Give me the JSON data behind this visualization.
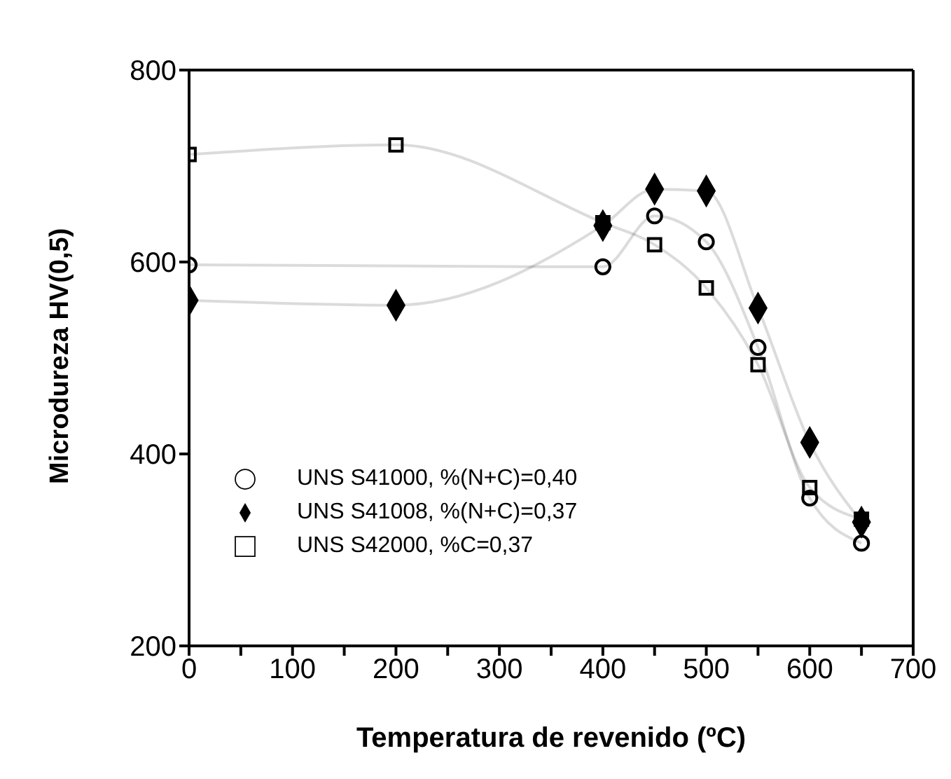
{
  "chart_data": {
    "type": "line",
    "xlabel": "Temperatura de revenido (ºC)",
    "ylabel": "Microdureza HV(0,5)",
    "x": [
      0,
      200,
      400,
      450,
      500,
      550,
      600,
      650
    ],
    "xlim": [
      0,
      700
    ],
    "xticks": [
      0,
      {
        "value": 50,
        "label": null
      },
      100,
      {
        "value": 150,
        "label": null
      },
      200,
      {
        "value": 250,
        "label": null
      },
      300,
      {
        "value": 350,
        "label": null
      },
      400,
      {
        "value": 450,
        "label": null
      },
      500,
      {
        "value": 550,
        "label": null
      },
      600,
      {
        "value": 650,
        "label": null
      },
      700
    ],
    "ylim": [
      200,
      800
    ],
    "yticks": [
      200,
      400,
      600,
      800
    ],
    "grid": false,
    "legend": "bottom left",
    "line_style": "solid",
    "series": [
      {
        "name": "UNS S41000, %(N+C)=0,40",
        "color": "#000000",
        "marker": "circle",
        "values": [
          597,
          null,
          595,
          648,
          621,
          511,
          354,
          307
        ]
      },
      {
        "name": "UNS S41008, %(N+C)=0,37",
        "color": "#000000",
        "marker": "diamond",
        "values": [
          560,
          555,
          638,
          676,
          674,
          552,
          412,
          329
        ]
      },
      {
        "name": "UNS S42000, %C=0,37",
        "color": "#000000",
        "marker": "square",
        "values": [
          712,
          722,
          641,
          618,
          573,
          493,
          365,
          332
        ]
      }
    ]
  }
}
